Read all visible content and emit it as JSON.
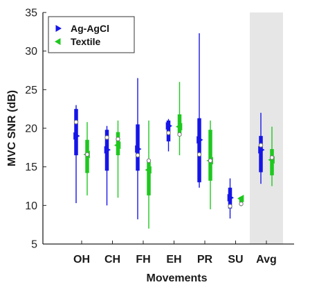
{
  "chart_data": {
    "type": "box",
    "title": "",
    "xlabel": "Movements",
    "ylabel": "MVC SNR (dB)",
    "ylim": [
      5,
      35
    ],
    "yticks": [
      5,
      10,
      15,
      20,
      25,
      30,
      35
    ],
    "categories": [
      "OH",
      "CH",
      "FH",
      "EH",
      "PR",
      "SU",
      "Avg"
    ],
    "highlighted_category": "Avg",
    "legend_position": "top-left",
    "series": [
      {
        "name": "Ag-AgCl",
        "color": "#1515e8",
        "marker": "triangle-right",
        "stats": [
          {
            "whisker_low": 10.3,
            "q1": 16.5,
            "median": 19.0,
            "q3": 22.5,
            "whisker_high": 23.0,
            "mean": 20.8
          },
          {
            "whisker_low": 10.0,
            "q1": 14.5,
            "median": 17.2,
            "q3": 19.8,
            "whisker_high": 20.3,
            "mean": 18.8
          },
          {
            "whisker_low": 8.2,
            "q1": 14.5,
            "median": 17.3,
            "q3": 20.5,
            "whisker_high": 26.5,
            "mean": 16.5
          },
          {
            "whisker_low": 17.0,
            "q1": 18.3,
            "median": 20.3,
            "q3": 21.0,
            "whisker_high": 21.2,
            "mean": 19.4
          },
          {
            "whisker_low": 12.3,
            "q1": 13.0,
            "median": 18.5,
            "q3": 21.3,
            "whisker_high": 32.3,
            "mean": 16.6
          },
          {
            "whisker_low": 8.3,
            "q1": 9.6,
            "median": 11.0,
            "q3": 12.3,
            "whisker_high": 13.5,
            "mean": 9.9
          },
          {
            "whisker_low": 12.8,
            "q1": 14.3,
            "median": 17.2,
            "q3": 19.0,
            "whisker_high": 22.0,
            "mean": 17.8
          }
        ]
      },
      {
        "name": "Textile",
        "color": "#1fc81f",
        "marker": "triangle-left",
        "stats": [
          {
            "whisker_low": 11.3,
            "q1": 14.2,
            "median": 16.6,
            "q3": 18.5,
            "whisker_high": 20.8,
            "mean": 16.6
          },
          {
            "whisker_low": 11.0,
            "q1": 16.5,
            "median": 17.8,
            "q3": 19.5,
            "whisker_high": 21.0,
            "mean": 18.6
          },
          {
            "whisker_low": 7.0,
            "q1": 11.3,
            "median": 14.6,
            "q3": 15.8,
            "whisker_high": 21.0,
            "mean": 15.8
          },
          {
            "whisker_low": 16.5,
            "q1": 19.0,
            "median": 20.2,
            "q3": 21.8,
            "whisker_high": 26.0,
            "mean": 19.2
          },
          {
            "whisker_low": 9.5,
            "q1": 13.2,
            "median": 15.8,
            "q3": 19.8,
            "whisker_high": 21.0,
            "mean": 15.8
          },
          {
            "whisker_low": 9.9,
            "q1": 10.4,
            "median": 10.9,
            "q3": 11.1,
            "whisker_high": 11.2,
            "mean": 10.2
          },
          {
            "whisker_low": 12.5,
            "q1": 13.9,
            "median": 15.9,
            "q3": 17.3,
            "whisker_high": 20.2,
            "mean": 16.2
          }
        ]
      }
    ]
  }
}
